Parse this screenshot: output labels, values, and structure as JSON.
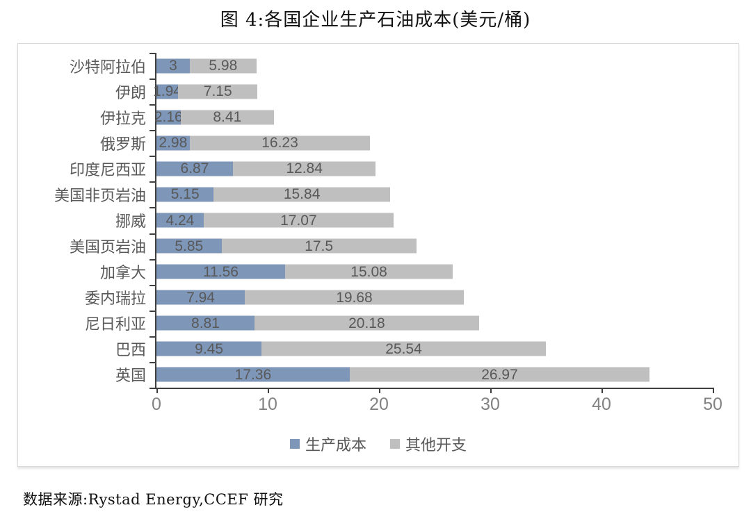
{
  "title": "图 4:各国企业生产石油成本(美元/桶)",
  "source": "数据来源:Rystad Energy,CCEF 研究",
  "colors": {
    "production_cost": "#7e96b8",
    "other_expense": "#bfbfbf",
    "axis": "#3f3f3f",
    "tick_label": "#828282",
    "data_label": "#595959",
    "box_border": "#d8d8d8"
  },
  "chart_data": {
    "type": "bar",
    "orientation": "horizontal",
    "stacked": true,
    "title": "图 4:各国企业生产石油成本(美元/桶)",
    "categories": [
      "沙特阿拉伯",
      "伊朗",
      "伊拉克",
      "俄罗斯",
      "印度尼西亚",
      "美国非页岩油",
      "挪威",
      "美国页岩油",
      "加拿大",
      "委内瑞拉",
      "尼日利亚",
      "巴西",
      "英国"
    ],
    "series": [
      {
        "name": "生产成本",
        "color": "#7e96b8",
        "values": [
          3,
          1.94,
          2.16,
          2.98,
          6.87,
          5.15,
          4.24,
          5.85,
          11.56,
          7.94,
          8.81,
          9.45,
          17.36
        ]
      },
      {
        "name": "其他开支",
        "color": "#bfbfbf",
        "values": [
          5.98,
          7.15,
          8.41,
          16.23,
          12.84,
          15.84,
          17.07,
          17.5,
          15.08,
          19.68,
          20.18,
          25.54,
          26.97
        ]
      }
    ],
    "xlabel": "",
    "ylabel": "",
    "xlim": [
      0,
      50
    ],
    "xticks": [
      0,
      10,
      20,
      30,
      40,
      50
    ],
    "grid": false,
    "legend_position": "bottom"
  }
}
